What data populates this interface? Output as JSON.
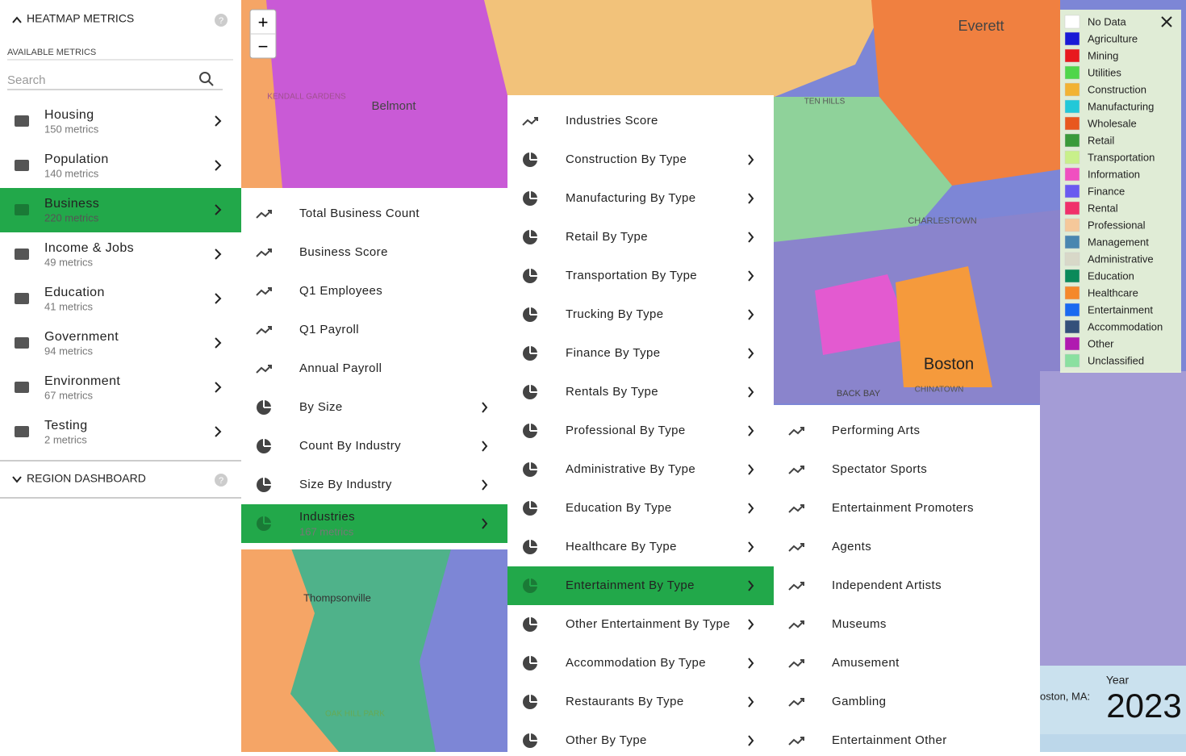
{
  "sidebar": {
    "title": "HEATMAP METRICS",
    "available_label": "AVAILABLE METRICS",
    "search_placeholder": "Search",
    "categories": [
      {
        "name": "Housing",
        "count": "150 metrics"
      },
      {
        "name": "Population",
        "count": "140 metrics"
      },
      {
        "name": "Business",
        "count": "220 metrics"
      },
      {
        "name": "Income & Jobs",
        "count": "49 metrics"
      },
      {
        "name": "Education",
        "count": "41 metrics"
      },
      {
        "name": "Government",
        "count": "94 metrics"
      },
      {
        "name": "Environment",
        "count": "67 metrics"
      },
      {
        "name": "Testing",
        "count": "2 metrics"
      }
    ],
    "selected": 2,
    "region_title": "REGION DASHBOARD"
  },
  "zoom": {
    "in": "+",
    "out": "−"
  },
  "menus": [
    {
      "selected": 8,
      "items": [
        {
          "label": "Total Business Count"
        },
        {
          "label": "Business Score"
        },
        {
          "label": "Q1 Employees"
        },
        {
          "label": "Q1 Payroll"
        },
        {
          "label": "Annual Payroll"
        },
        {
          "label": "By Size",
          "expandable": true
        },
        {
          "label": "Count By Industry",
          "expandable": true
        },
        {
          "label": "Size By Industry",
          "expandable": true
        },
        {
          "label": "Industries",
          "sublabel": "167 metrics",
          "expandable": true
        }
      ]
    },
    {
      "selected": 12,
      "items": [
        {
          "label": "Industries Score"
        },
        {
          "label": "Construction By Type",
          "expandable": true
        },
        {
          "label": "Manufacturing By Type",
          "expandable": true
        },
        {
          "label": "Retail By Type",
          "expandable": true
        },
        {
          "label": "Transportation By Type",
          "expandable": true
        },
        {
          "label": "Trucking By Type",
          "expandable": true
        },
        {
          "label": "Finance By Type",
          "expandable": true
        },
        {
          "label": "Rentals By Type",
          "expandable": true
        },
        {
          "label": "Professional By Type",
          "expandable": true
        },
        {
          "label": "Administrative By Type",
          "expandable": true
        },
        {
          "label": "Education By Type",
          "expandable": true
        },
        {
          "label": "Healthcare By Type",
          "expandable": true
        },
        {
          "label": "Entertainment By Type",
          "expandable": true
        },
        {
          "label": "Other Entertainment By Type",
          "expandable": true
        },
        {
          "label": "Accommodation By Type",
          "expandable": true
        },
        {
          "label": "Restaurants By Type",
          "expandable": true
        },
        {
          "label": "Other By Type",
          "expandable": true
        }
      ]
    },
    {
      "items": [
        {
          "label": "Performing Arts"
        },
        {
          "label": "Spectator Sports"
        },
        {
          "label": "Entertainment Promoters"
        },
        {
          "label": "Agents"
        },
        {
          "label": "Independent Artists"
        },
        {
          "label": "Museums"
        },
        {
          "label": "Amusement"
        },
        {
          "label": "Gambling"
        },
        {
          "label": "Entertainment Other"
        }
      ]
    }
  ],
  "legend": {
    "items": [
      {
        "name": "No Data",
        "color": "#ffffff"
      },
      {
        "name": "Agriculture",
        "color": "#1a1ad6"
      },
      {
        "name": "Mining",
        "color": "#e8191e"
      },
      {
        "name": "Utilities",
        "color": "#4fd64a"
      },
      {
        "name": "Construction",
        "color": "#f2b233"
      },
      {
        "name": "Manufacturing",
        "color": "#22c8d8"
      },
      {
        "name": "Wholesale",
        "color": "#e8571e"
      },
      {
        "name": "Retail",
        "color": "#3a9a3a"
      },
      {
        "name": "Transportation",
        "color": "#c8f08a"
      },
      {
        "name": "Information",
        "color": "#f050c0"
      },
      {
        "name": "Finance",
        "color": "#6a5af0"
      },
      {
        "name": "Rental",
        "color": "#f0306a"
      },
      {
        "name": "Professional",
        "color": "#f5c89a"
      },
      {
        "name": "Management",
        "color": "#4a86b0"
      },
      {
        "name": "Administrative",
        "color": "#d8d8c8"
      },
      {
        "name": "Education",
        "color": "#0a8a5a"
      },
      {
        "name": "Healthcare",
        "color": "#f5882a"
      },
      {
        "name": "Entertainment",
        "color": "#1a6af0"
      },
      {
        "name": "Accommodation",
        "color": "#34507a"
      },
      {
        "name": "Other",
        "color": "#b01ab0"
      },
      {
        "name": "Unclassified",
        "color": "#8ae0a0"
      }
    ]
  },
  "year_box": {
    "label": "Year",
    "value": "2023",
    "region": "oston, MA:"
  },
  "map_labels": [
    "Everett",
    "Belmont",
    "Boston",
    "CHARLESTOWN",
    "Thompsonville",
    "BACK BAY",
    "CHINATOWN",
    "TEN HILLS",
    "KENDALL GARDENS",
    "OAK HILL PARK"
  ]
}
